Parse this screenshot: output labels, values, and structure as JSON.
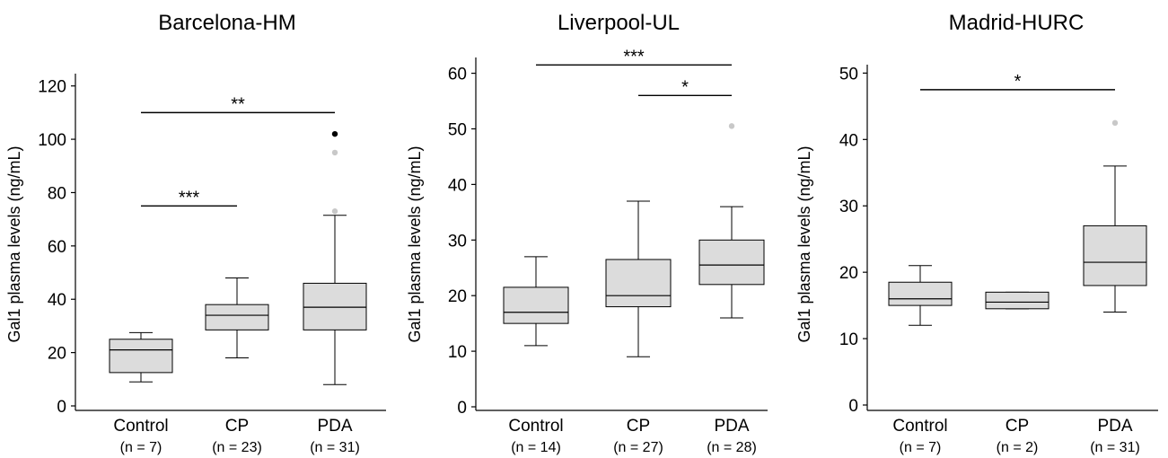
{
  "chart_data": [
    {
      "type": "box",
      "title": "Barcelona-HM",
      "ylabel": "Gal1 plasma levels (ng/mL)",
      "ylim": [
        0,
        130
      ],
      "yticks": [
        0,
        20,
        40,
        60,
        80,
        100,
        120
      ],
      "categories": [
        "Control",
        "CP",
        "PDA"
      ],
      "n_labels": [
        "(n = 7)",
        "(n = 23)",
        "(n = 31)"
      ],
      "boxes": [
        {
          "category": "Control",
          "min": 9,
          "q1": 12.5,
          "median": 21,
          "q3": 25,
          "max": 27.5,
          "outliers": []
        },
        {
          "category": "CP",
          "min": 18,
          "q1": 28.5,
          "median": 34,
          "q3": 38,
          "max": 48,
          "outliers": []
        },
        {
          "category": "PDA",
          "min": 8,
          "q1": 28.5,
          "median": 37,
          "q3": 46,
          "max": 71.5,
          "outliers": [
            {
              "value": 73,
              "color": "#c8c8c8"
            },
            {
              "value": 95,
              "color": "#c8c8c8"
            },
            {
              "value": 102,
              "color": "#000000"
            }
          ]
        }
      ],
      "significance": [
        {
          "from": 0,
          "to": 2,
          "value": 110,
          "label": "**"
        },
        {
          "from": 0,
          "to": 1,
          "value": 75,
          "label": "***"
        }
      ]
    },
    {
      "type": "box",
      "title": "Liverpool-UL",
      "ylabel": "Gal1 plasma levels (ng/mL)",
      "ylim": [
        0,
        63
      ],
      "yticks": [
        0,
        10,
        20,
        30,
        40,
        50,
        60
      ],
      "categories": [
        "Control",
        "CP",
        "PDA"
      ],
      "n_labels": [
        "(n = 14)",
        "(n = 27)",
        "(n = 28)"
      ],
      "boxes": [
        {
          "category": "Control",
          "min": 11,
          "q1": 15,
          "median": 17,
          "q3": 21.5,
          "max": 27,
          "outliers": []
        },
        {
          "category": "CP",
          "min": 9,
          "q1": 18,
          "median": 20,
          "q3": 26.5,
          "max": 37,
          "outliers": []
        },
        {
          "category": "PDA",
          "min": 16,
          "q1": 22,
          "median": 25.5,
          "q3": 30,
          "max": 36,
          "outliers": [
            {
              "value": 50.5,
              "color": "#c8c8c8"
            }
          ]
        }
      ],
      "significance": [
        {
          "from": 0,
          "to": 2,
          "value": 61.5,
          "label": "***"
        },
        {
          "from": 1,
          "to": 2,
          "value": 56,
          "label": "*"
        }
      ]
    },
    {
      "type": "box",
      "title": "Madrid-HURC",
      "ylabel": "Gal1 plasma levels (ng/mL)",
      "ylim": [
        0,
        51
      ],
      "yticks": [
        0,
        10,
        20,
        30,
        40,
        50
      ],
      "categories": [
        "Control",
        "CP",
        "PDA"
      ],
      "n_labels": [
        "(n = 7)",
        "(n = 2)",
        "(n = 31)"
      ],
      "boxes": [
        {
          "category": "Control",
          "min": 12,
          "q1": 15,
          "median": 16,
          "q3": 18.5,
          "max": 21,
          "outliers": []
        },
        {
          "category": "CP",
          "min": 14.5,
          "q1": 14.5,
          "median": 15.5,
          "q3": 17,
          "max": 17,
          "outliers": []
        },
        {
          "category": "PDA",
          "min": 14,
          "q1": 18,
          "median": 21.5,
          "q3": 27,
          "max": 36,
          "outliers": [
            {
              "value": 42.5,
              "color": "#c8c8c8"
            }
          ]
        }
      ],
      "significance": [
        {
          "from": 0,
          "to": 2,
          "value": 47.5,
          "label": "*"
        }
      ]
    }
  ]
}
